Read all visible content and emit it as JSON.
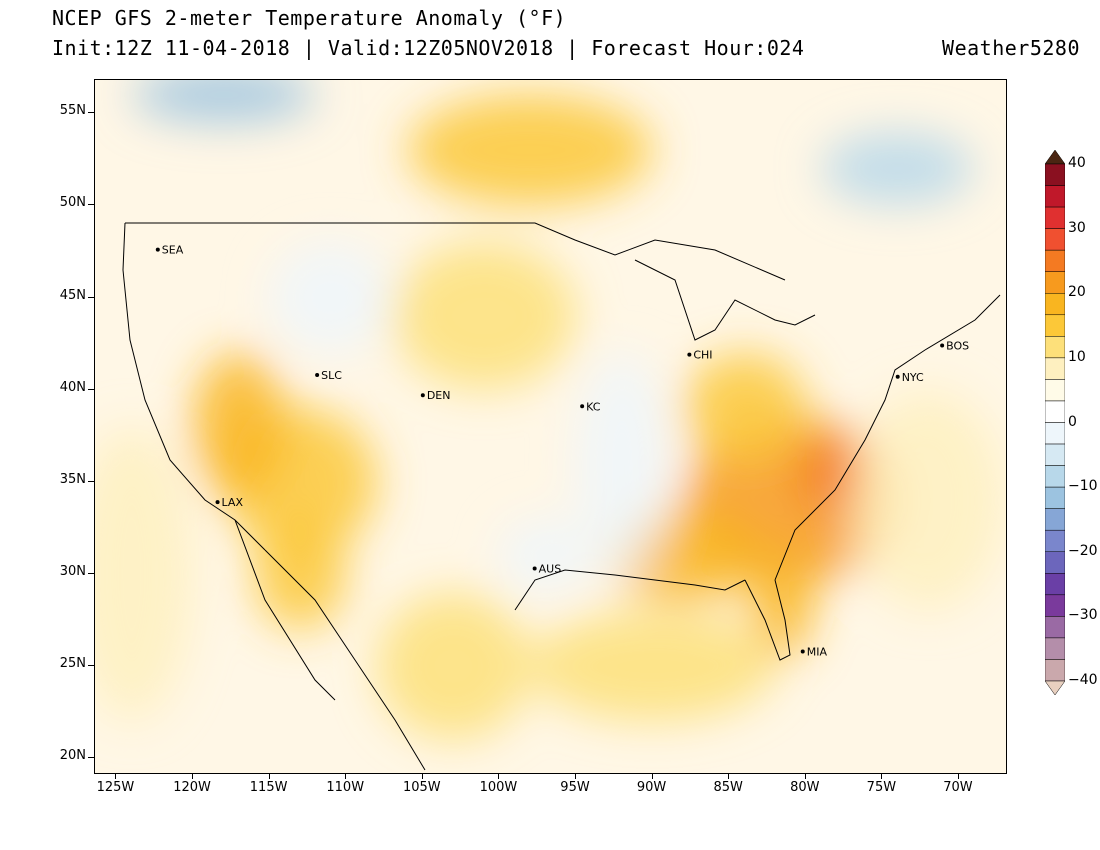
{
  "header": {
    "title": "NCEP GFS 2-meter Temperature Anomaly (°F)",
    "subtitle": "Init:12Z 11-04-2018 | Valid:12Z05NOV2018 | Forecast Hour:024",
    "brand": "Weather5280"
  },
  "map": {
    "lat_labels": [
      "55N",
      "50N",
      "45N",
      "40N",
      "35N",
      "30N",
      "25N",
      "20N"
    ],
    "lat_values": [
      55,
      50,
      45,
      40,
      35,
      30,
      25,
      20
    ],
    "lon_labels": [
      "125W",
      "120W",
      "115W",
      "110W",
      "105W",
      "100W",
      "95W",
      "90W",
      "85W",
      "80W",
      "75W",
      "70W"
    ],
    "lon_values": [
      -125,
      -120,
      -115,
      -110,
      -105,
      -100,
      -95,
      -90,
      -85,
      -80,
      -75,
      -70
    ],
    "cities": [
      {
        "name": "SEA",
        "lon": -122.3,
        "lat": 47.6
      },
      {
        "name": "SLC",
        "lon": -111.9,
        "lat": 40.8
      },
      {
        "name": "DEN",
        "lon": -105.0,
        "lat": 39.7
      },
      {
        "name": "KC",
        "lon": -94.6,
        "lat": 39.1
      },
      {
        "name": "CHI",
        "lon": -87.6,
        "lat": 41.9
      },
      {
        "name": "NYC",
        "lon": -74.0,
        "lat": 40.7
      },
      {
        "name": "BOS",
        "lon": -71.1,
        "lat": 42.4
      },
      {
        "name": "LAX",
        "lon": -118.4,
        "lat": 33.9
      },
      {
        "name": "AUS",
        "lon": -97.7,
        "lat": 30.3
      },
      {
        "name": "MIA",
        "lon": -80.2,
        "lat": 25.8
      }
    ]
  },
  "colorbar": {
    "labels": [
      "40",
      "30",
      "20",
      "10",
      "0",
      "−10",
      "−20",
      "−30",
      "−40"
    ],
    "values": [
      40,
      30,
      20,
      10,
      0,
      -10,
      -20,
      -30,
      -40
    ],
    "colors": [
      "#4a2512",
      "#8a1020",
      "#c0182a",
      "#e03030",
      "#f05030",
      "#f47a22",
      "#f79a1e",
      "#f9b520",
      "#fcc838",
      "#fde07a",
      "#fef0c0",
      "#fffbe8",
      "#ffffff",
      "#eef6fb",
      "#d6e9f3",
      "#b8d8ea",
      "#9cc3e0",
      "#86a6d6",
      "#7a86cc",
      "#6c66bc",
      "#6a3fa6",
      "#7a3a9c",
      "#9a6aa4",
      "#b48eaa",
      "#caa8ac",
      "#e8d0c0"
    ]
  },
  "anomaly_regions": [
    {
      "name": "southeast-warm",
      "lon": -81,
      "lat": 34,
      "rx": 7,
      "ry": 4.5,
      "color": "#f79a1e"
    },
    {
      "name": "carolina-hot",
      "lon": -78,
      "lat": 35.5,
      "rx": 2.5,
      "ry": 2,
      "color": "#f47a22"
    },
    {
      "name": "gulf-coast-warm",
      "lon": -88,
      "lat": 31,
      "rx": 5,
      "ry": 2.5,
      "color": "#f9b520"
    },
    {
      "name": "florida-warm",
      "lon": -81.5,
      "lat": 28.5,
      "rx": 2,
      "ry": 3,
      "color": "#f9b520"
    },
    {
      "name": "southwest-warm",
      "lon": -113,
      "lat": 35,
      "rx": 5,
      "ry": 4,
      "color": "#fcc838"
    },
    {
      "name": "nevada-warm",
      "lon": -117,
      "lat": 38,
      "rx": 3,
      "ry": 4,
      "color": "#f9b520"
    },
    {
      "name": "baja-warm",
      "lon": -113,
      "lat": 30,
      "rx": 3,
      "ry": 3,
      "color": "#fcc838"
    },
    {
      "name": "mexico-warm",
      "lon": -103,
      "lat": 25,
      "rx": 5,
      "ry": 4,
      "color": "#fde07a"
    },
    {
      "name": "plains-warm",
      "lon": -101,
      "lat": 44,
      "rx": 6,
      "ry": 4,
      "color": "#fde07a"
    },
    {
      "name": "canada-warm",
      "lon": -98,
      "lat": 53,
      "rx": 8,
      "ry": 3,
      "color": "#fcc838"
    },
    {
      "name": "ohio-valley-warm",
      "lon": -84,
      "lat": 39,
      "rx": 4,
      "ry": 3,
      "color": "#fcc838"
    },
    {
      "name": "gulf-warm",
      "lon": -90,
      "lat": 25,
      "rx": 8,
      "ry": 3,
      "color": "#fde07a"
    },
    {
      "name": "midwest-cool",
      "lon": -92,
      "lat": 36,
      "rx": 3,
      "ry": 6,
      "color": "#eef6fb"
    },
    {
      "name": "texas-cool",
      "lon": -97,
      "lat": 31,
      "rx": 3,
      "ry": 2,
      "color": "#eef6fb"
    },
    {
      "name": "rockies-cool",
      "lon": -111,
      "lat": 45,
      "rx": 4,
      "ry": 3,
      "color": "#eef6fb"
    },
    {
      "name": "northwest-canada-cold",
      "lon": -118,
      "lat": 56,
      "rx": 6,
      "ry": 1.5,
      "color": "#9cc3e0"
    },
    {
      "name": "hudson-cold",
      "lon": -74,
      "lat": 52,
      "rx": 5,
      "ry": 2,
      "color": "#b8d8ea"
    },
    {
      "name": "atlantic-warm",
      "lon": -72,
      "lat": 34,
      "rx": 5,
      "ry": 6,
      "color": "#fef0c0"
    },
    {
      "name": "pacific-warm",
      "lon": -124,
      "lat": 30,
      "rx": 4,
      "ry": 8,
      "color": "#fef0c0"
    }
  ]
}
